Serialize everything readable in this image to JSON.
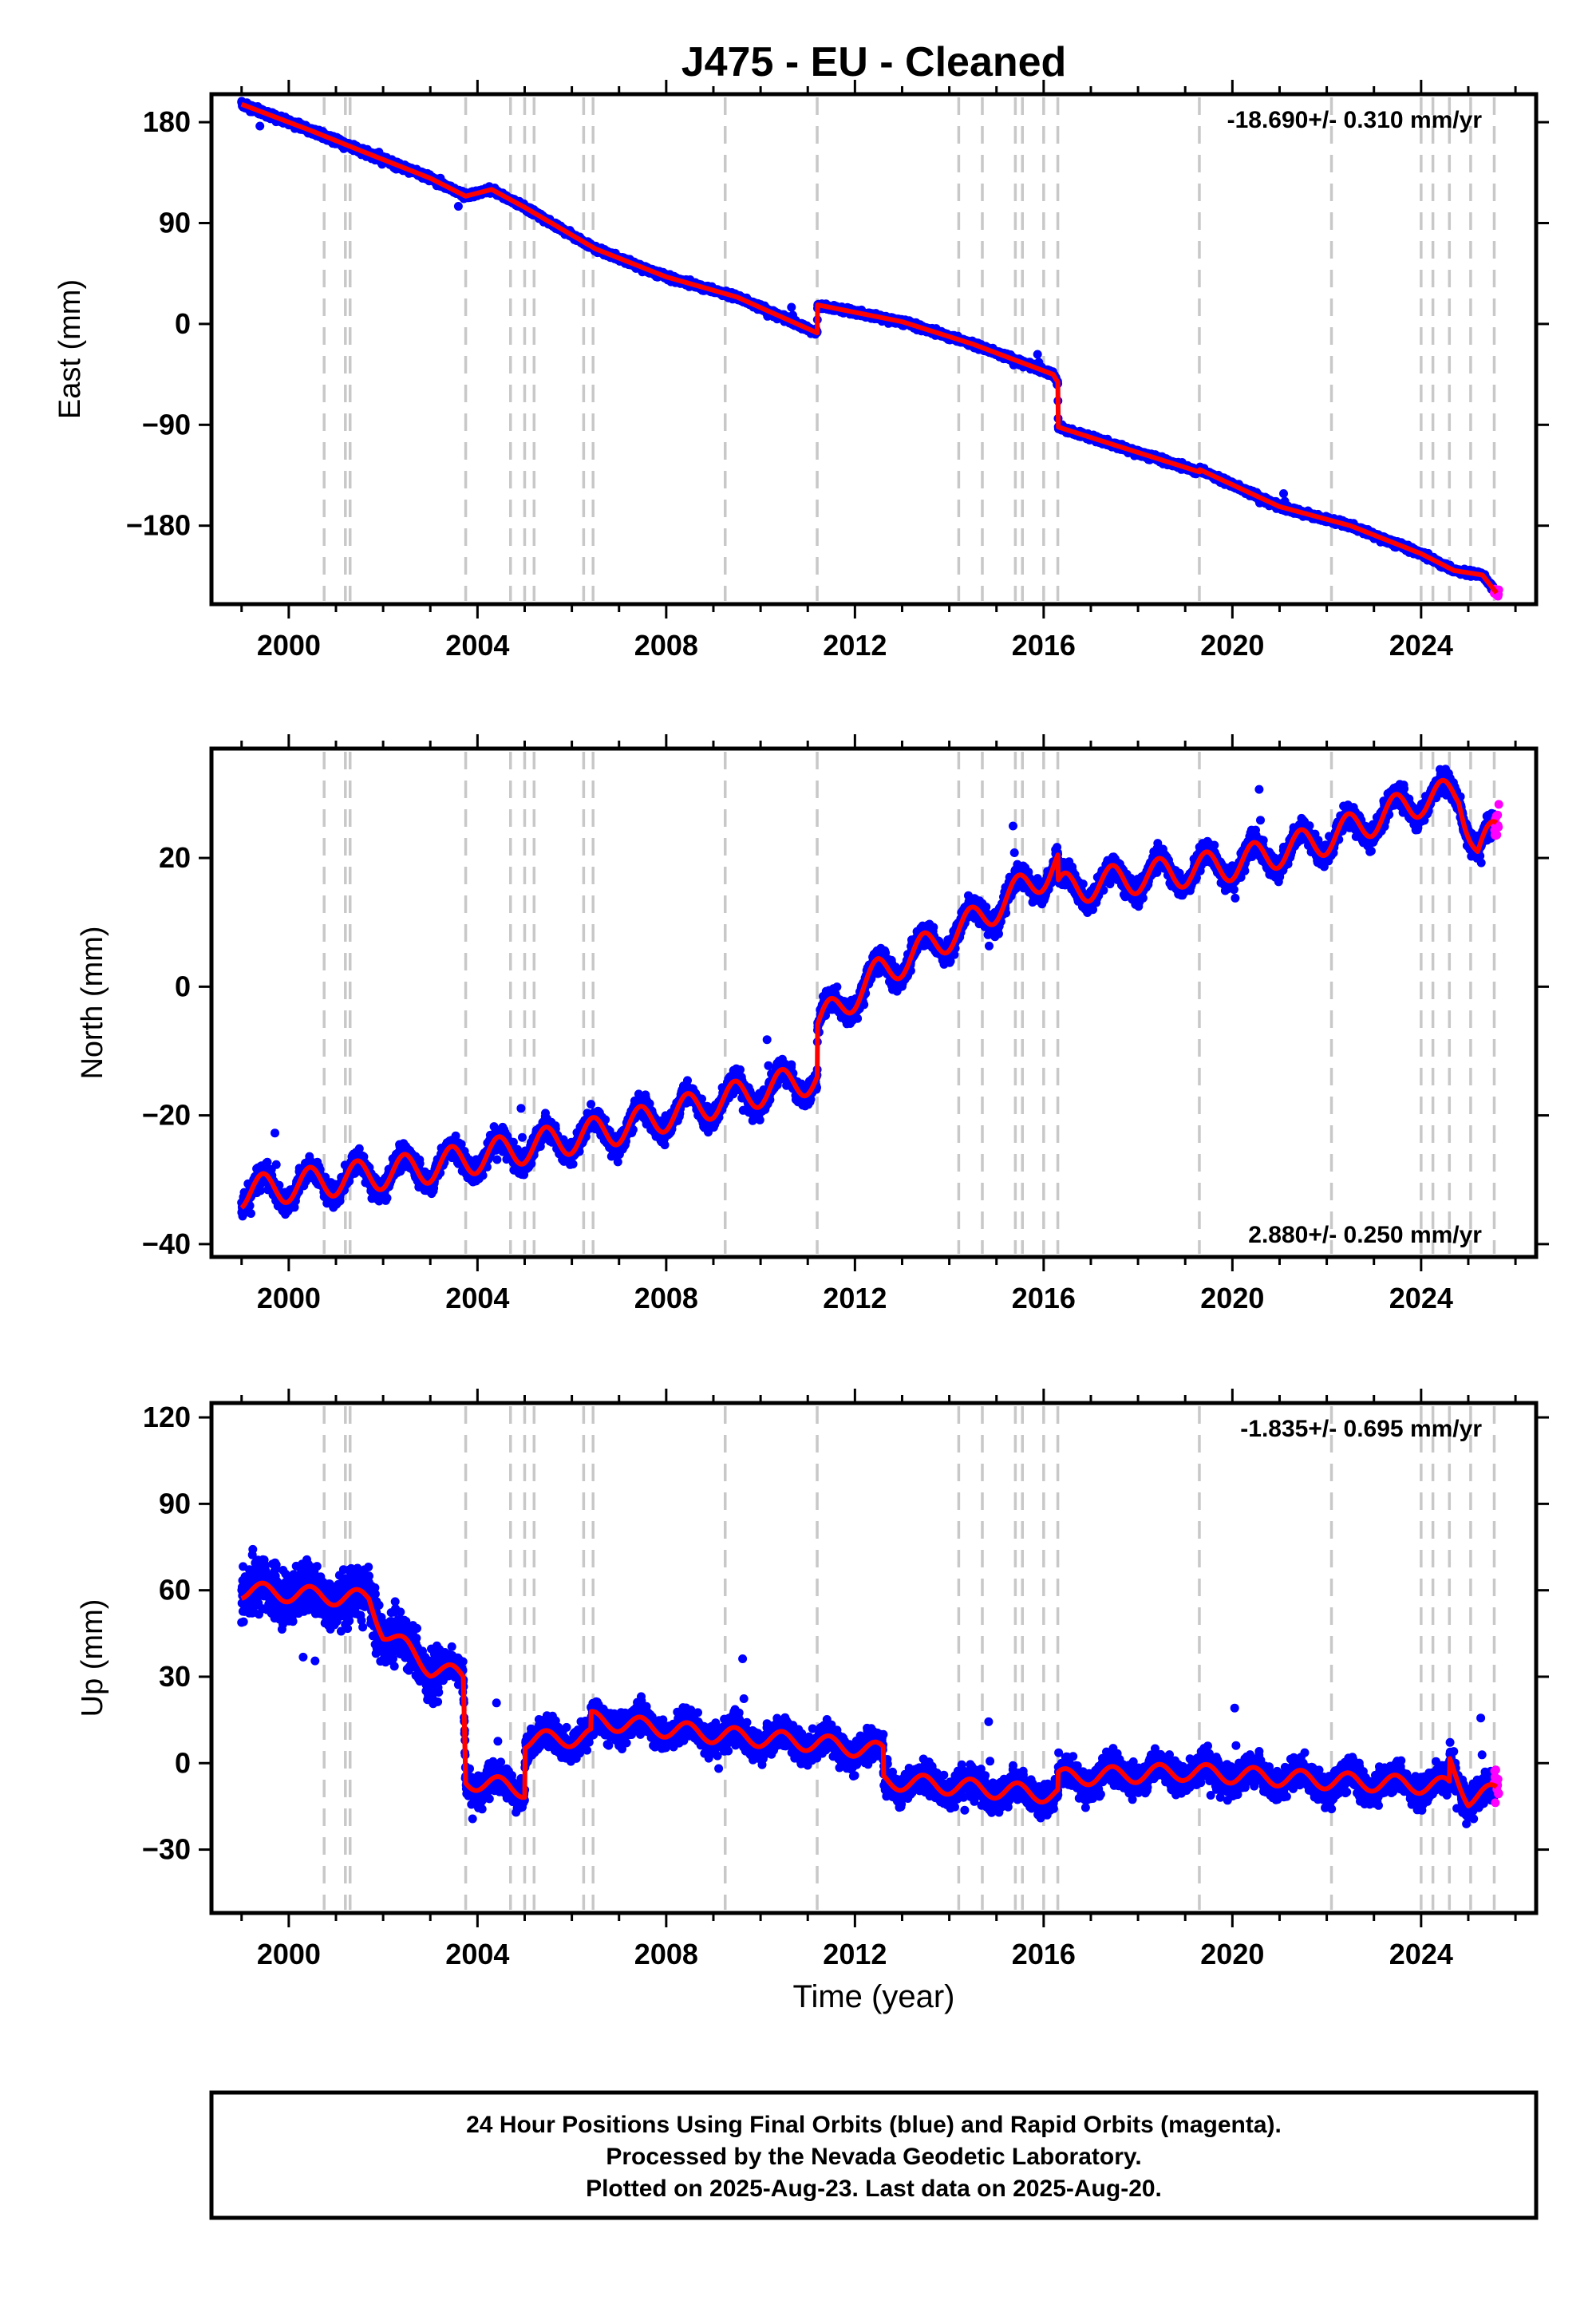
{
  "title": "J475  - EU - Cleaned",
  "footer": {
    "lines": [
      "24 Hour Positions Using Final Orbits (blue) and Rapid Orbits (magenta).",
      "Processed by the Nevada Geodetic Laboratory.",
      "Plotted on 2025-Aug-23. Last data on 2025-Aug-20."
    ]
  },
  "colors": {
    "final_orbits": "#0000ff",
    "rapid_orbits": "#ff00ff",
    "model_fit": "#ff0000",
    "event_lines": "#c8c8c8"
  },
  "chart_data": [
    {
      "type": "scatter",
      "ylabel": "East (mm)",
      "xlabel": "",
      "xlim": [
        1998.7,
        2026.1
      ],
      "ylim": [
        -250,
        205
      ],
      "xticks": [
        2000,
        2004,
        2008,
        2012,
        2016,
        2020,
        2024
      ],
      "yticks": [
        -180,
        -90,
        0,
        90,
        180
      ],
      "yticklabels": [
        "−180",
        "−90",
        "0",
        "90",
        "180"
      ],
      "rate_annotation": "-18.690+/- 0.310 mm/yr",
      "rate_position": "top-right",
      "event_lines": [
        2000.75,
        2001.2,
        2001.3,
        2003.75,
        2004.7,
        2005.0,
        2005.2,
        2006.25,
        2006.45,
        2009.25,
        2011.2,
        2014.2,
        2014.7,
        2015.4,
        2015.55,
        2016.0,
        2016.3,
        2019.3,
        2022.1,
        2024.0,
        2024.25,
        2024.6,
        2025.05,
        2025.55
      ],
      "fit_line": {
        "x": [
          1999.0,
          2000.5,
          2001.5,
          2003.0,
          2003.75,
          2004.3,
          2005.0,
          2006.5,
          2008.0,
          2009.5,
          2011.2,
          2011.21,
          2013.0,
          2014.5,
          2016.2,
          2016.3,
          2016.31,
          2017.5,
          2019.3,
          2019.31,
          2021.0,
          2022.5,
          2024.0,
          2024.7,
          2025.3,
          2025.6
        ],
        "y": [
          196,
          172,
          155,
          130,
          114,
          120,
          104,
          67,
          42,
          24,
          -8,
          17,
          2,
          -18,
          -45,
          -52,
          -92,
          -108,
          -132,
          -130,
          -163,
          -180,
          -205,
          -220,
          -224,
          -240
        ]
      },
      "final_scatter": "0.0 ~ 2025.55, sigma 3 mm about fit",
      "rapid_range": [
        2025.55,
        2025.65
      ]
    },
    {
      "type": "scatter",
      "ylabel": "North (mm)",
      "xlabel": "",
      "xlim": [
        1998.7,
        2026.1
      ],
      "ylim": [
        -42,
        37
      ],
      "xticks": [
        2000,
        2004,
        2008,
        2012,
        2016,
        2020,
        2024
      ],
      "yticks": [
        -40,
        -20,
        0,
        20
      ],
      "yticklabels": [
        "−40",
        "−20",
        "0",
        "20"
      ],
      "rate_annotation": "2.880+/- 0.250 mm/yr",
      "rate_position": "bottom-right",
      "event_lines": [
        2000.75,
        2001.2,
        2001.3,
        2003.75,
        2004.7,
        2005.0,
        2005.2,
        2006.25,
        2006.45,
        2009.25,
        2011.2,
        2014.2,
        2014.7,
        2015.4,
        2015.55,
        2016.0,
        2016.3,
        2019.3,
        2022.1,
        2024.0,
        2024.25,
        2024.6,
        2025.05,
        2025.55
      ],
      "fit_line": {
        "x": [
          1999.0,
          2001.0,
          2003.0,
          2005.0,
          2007.0,
          2009.0,
          2011.2,
          2011.21,
          2012.5,
          2014.5,
          2016.3,
          2016.31,
          2018.0,
          2020.0,
          2022.0,
          2024.0,
          2024.8,
          2025.2,
          2025.6
        ],
        "y": [
          -32,
          -30,
          -28,
          -25,
          -22,
          -18,
          -14,
          -6,
          2,
          10,
          19,
          15,
          17,
          19,
          23,
          29,
          30,
          21,
          24
        ]
      },
      "seasonal_amplitude": 2.5,
      "rapid_range": [
        2025.55,
        2025.65
      ]
    },
    {
      "type": "scatter",
      "ylabel": "Up (mm)",
      "xlabel": "Time (year)",
      "xlim": [
        1998.7,
        2026.1
      ],
      "ylim": [
        -52,
        125
      ],
      "xticks": [
        2000,
        2004,
        2008,
        2012,
        2016,
        2020,
        2024
      ],
      "yticks": [
        -30,
        0,
        30,
        60,
        90,
        120
      ],
      "yticklabels": [
        "−30",
        "0",
        "30",
        "60",
        "90",
        "120"
      ],
      "rate_annotation": "-1.835+/- 0.695 mm/yr",
      "rate_position": "top-right",
      "event_lines": [
        2000.75,
        2001.2,
        2001.3,
        2003.75,
        2004.7,
        2005.0,
        2005.2,
        2006.25,
        2006.45,
        2009.25,
        2011.2,
        2014.2,
        2014.7,
        2015.4,
        2015.55,
        2016.0,
        2016.3,
        2019.3,
        2022.1,
        2024.0,
        2024.25,
        2024.6,
        2025.05,
        2025.55
      ],
      "fit_line": {
        "x": [
          1999.0,
          2001.7,
          2002.0,
          2002.5,
          2003.0,
          2003.7,
          2003.75,
          2005.0,
          2005.01,
          2006.4,
          2006.41,
          2009.0,
          2011.2,
          2012.6,
          2012.61,
          2016.3,
          2016.31,
          2019.0,
          2022.0,
          2024.6,
          2024.61,
          2025.0,
          2025.6
        ],
        "y": [
          60,
          57,
          46,
          40,
          33,
          30,
          -6,
          -9,
          8,
          9,
          15,
          10,
          7,
          4,
          -6,
          -11,
          -5,
          -3,
          -6,
          -8,
          0,
          -12,
          -10
        ]
      },
      "seasonal_amplitude": 3.0,
      "rapid_range": [
        2025.55,
        2025.65
      ]
    }
  ]
}
